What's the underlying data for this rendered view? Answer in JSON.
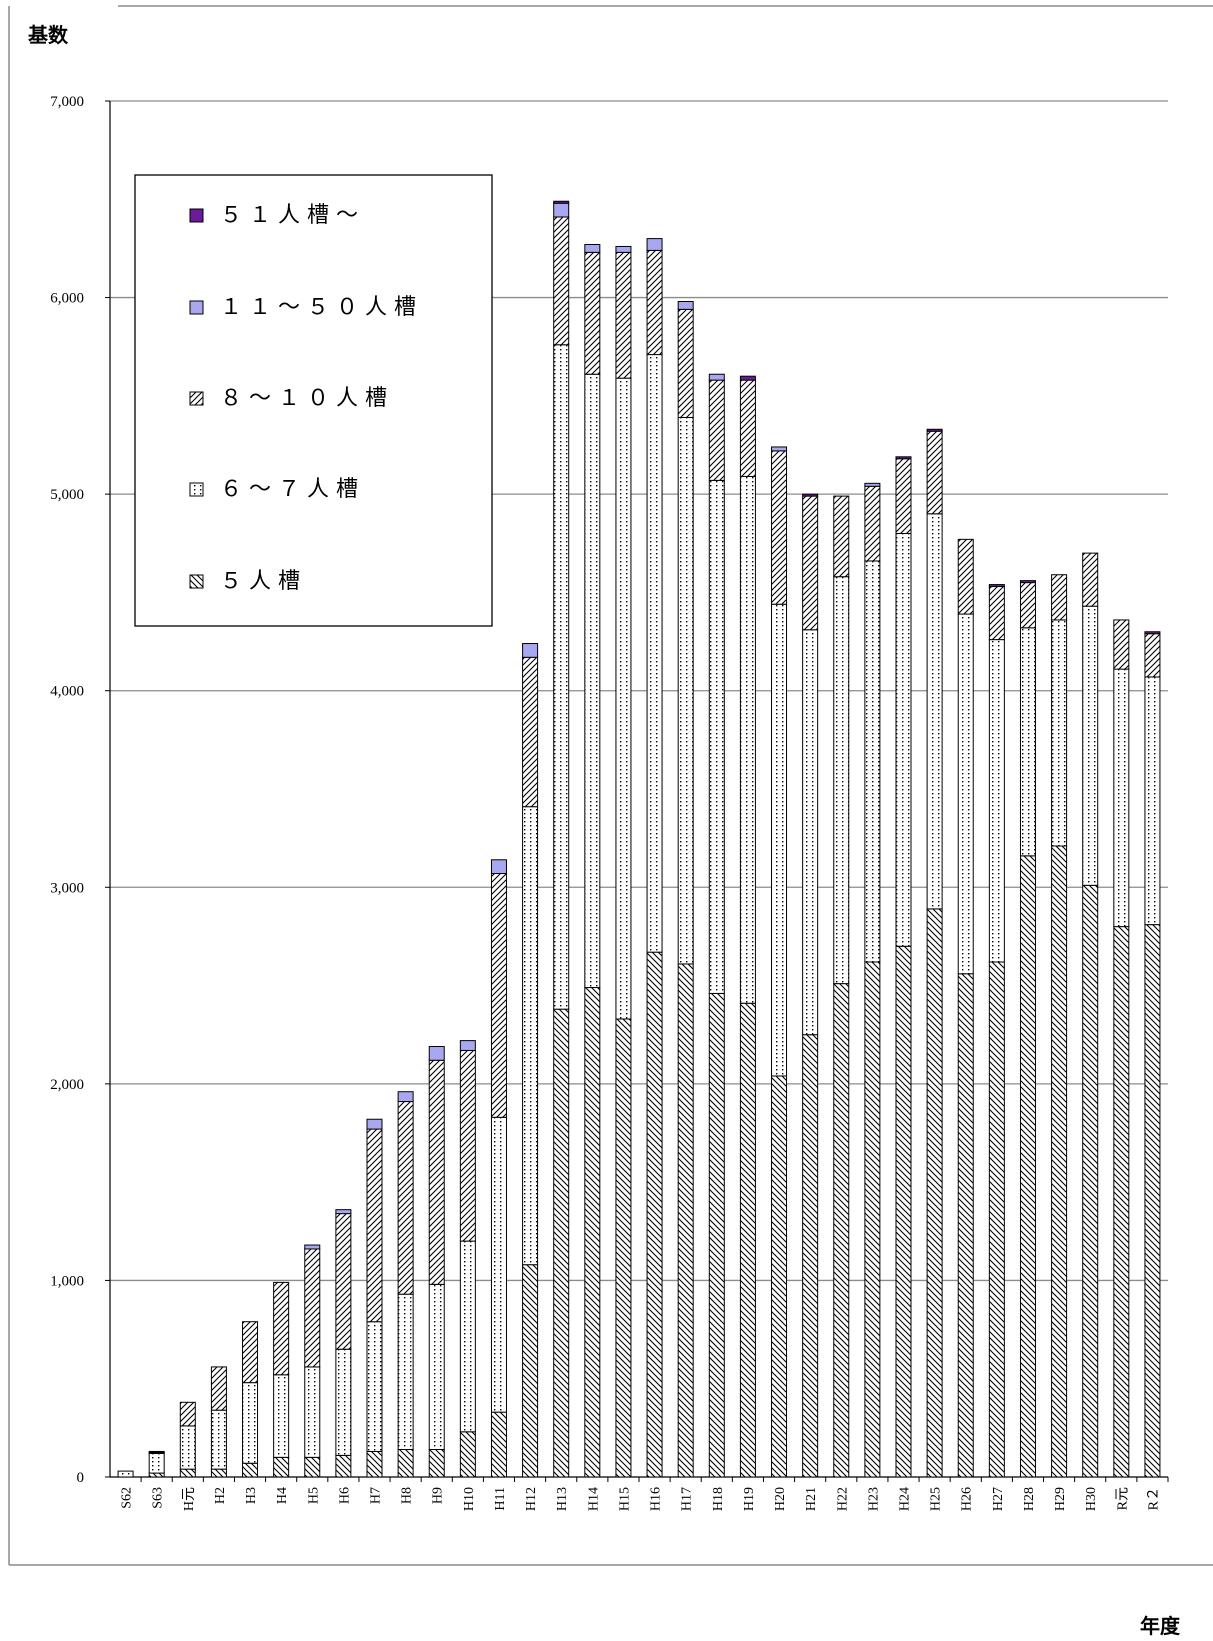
{
  "chart_data": {
    "type": "bar",
    "stacked": true,
    "ylabel": "基数",
    "xlabel": "年度",
    "ylim": [
      0,
      7000
    ],
    "yticks": [
      0,
      1000,
      2000,
      3000,
      4000,
      5000,
      6000,
      7000
    ],
    "ytick_labels": [
      "0",
      "1,000",
      "2,000",
      "3,000",
      "4,000",
      "5,000",
      "6,000",
      "7,000"
    ],
    "grid": true,
    "legend_position": "top-left",
    "categories": [
      "S62",
      "S63",
      "H元",
      "H2",
      "H3",
      "H4",
      "H5",
      "H6",
      "H7",
      "H8",
      "H9",
      "H10",
      "H11",
      "H12",
      "H13",
      "H14",
      "H15",
      "H16",
      "H17",
      "H18",
      "H19",
      "H20",
      "H21",
      "H22",
      "H23",
      "H24",
      "H25",
      "H26",
      "H27",
      "H28",
      "H29",
      "H30",
      "R元",
      "R２"
    ],
    "series": [
      {
        "name": "５人槽",
        "pattern": "backslash",
        "values": [
          0,
          20,
          40,
          40,
          70,
          100,
          100,
          110,
          130,
          140,
          140,
          230,
          330,
          1080,
          2380,
          2490,
          2330,
          2670,
          2610,
          2460,
          2410,
          2040,
          2250,
          2510,
          2620,
          2700,
          2890,
          2560,
          2620,
          3160,
          3210,
          3010,
          2800,
          2810
        ]
      },
      {
        "name": "６～７人槽",
        "pattern": "dots",
        "values": [
          30,
          100,
          220,
          300,
          410,
          420,
          460,
          540,
          660,
          790,
          840,
          970,
          1500,
          2330,
          3380,
          3120,
          3260,
          3040,
          2780,
          2610,
          2680,
          2400,
          2060,
          2070,
          2040,
          2100,
          2010,
          1830,
          1640,
          1160,
          1150,
          1420,
          1310,
          1260
        ]
      },
      {
        "name": "８～１０人槽",
        "pattern": "slash",
        "values": [
          0,
          0,
          120,
          220,
          310,
          470,
          600,
          690,
          980,
          980,
          1140,
          970,
          1240,
          760,
          650,
          620,
          640,
          530,
          550,
          510,
          490,
          780,
          680,
          410,
          380,
          380,
          420,
          380,
          270,
          230,
          230,
          270,
          250,
          220
        ]
      },
      {
        "name": "１１～５０人槽",
        "pattern": "solid-lavender",
        "values": [
          0,
          5,
          0,
          0,
          0,
          0,
          20,
          20,
          50,
          50,
          70,
          50,
          70,
          70,
          70,
          40,
          30,
          60,
          40,
          30,
          0,
          20,
          0,
          0,
          15,
          0,
          0,
          0,
          0,
          0,
          0,
          0,
          0,
          0
        ]
      },
      {
        "name": "５１人槽～",
        "pattern": "solid-purple",
        "values": [
          0,
          5,
          0,
          0,
          0,
          0,
          0,
          0,
          0,
          0,
          0,
          0,
          0,
          0,
          10,
          0,
          0,
          0,
          0,
          0,
          20,
          0,
          10,
          0,
          0,
          10,
          10,
          0,
          10,
          10,
          0,
          0,
          0,
          10
        ]
      }
    ],
    "legend_order": [
      "５１人槽～",
      "１１～５０人槽",
      "８～１０人槽",
      "６～７人槽",
      "５人槽"
    ],
    "legend_display": [
      "５ １ 人 槽 ～",
      "１ １ ～ ５ ０ 人 槽",
      "８ ～ １ ０ 人 槽",
      "６ ～ ７ 人 槽",
      "５ 人 槽"
    ],
    "colors": {
      "solid-purple": "#6a1b9a",
      "solid-lavender": "#a8a8f0",
      "gridline": "#8c8c8c",
      "frame": "#8c8c8c",
      "bar_edge": "#000000"
    }
  }
}
